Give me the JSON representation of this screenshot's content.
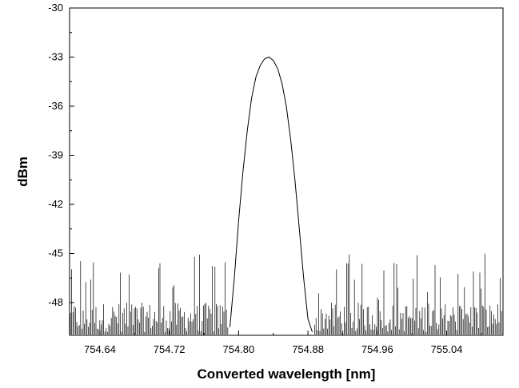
{
  "chart_data": {
    "type": "line",
    "title": "",
    "xlabel": "Converted wavelength [nm]",
    "ylabel": "dBm",
    "xlim": [
      754.605,
      755.105
    ],
    "ylim": [
      -50.0,
      -30
    ],
    "x_ticks": [
      754.64,
      754.72,
      754.8,
      754.88,
      754.96,
      755.04
    ],
    "x_tick_labels": [
      "754.64",
      "754.72",
      "754.80",
      "754.88",
      "754.96",
      "755.04"
    ],
    "y_ticks": [
      -30,
      -33,
      -36,
      -39,
      -42,
      -45,
      -48
    ],
    "y_tick_labels": [
      "-30",
      "-33",
      "-36",
      "-39",
      "-42",
      "-45",
      "-48"
    ],
    "grid": false,
    "line_color": "#000000",
    "series": [
      {
        "x": [
          754.79,
          754.795,
          754.8,
          754.805,
          754.81,
          754.815,
          754.82,
          754.825,
          754.83,
          754.835,
          754.84,
          754.845,
          754.85,
          754.855,
          754.86,
          754.865,
          754.87,
          754.875,
          754.88,
          754.885
        ],
        "values": [
          -49.5,
          -46.5,
          -43.0,
          -40.0,
          -37.5,
          -35.5,
          -34.2,
          -33.5,
          -33.1,
          -33.0,
          -33.2,
          -33.7,
          -34.6,
          -36.0,
          -38.0,
          -40.5,
          -43.5,
          -46.5,
          -49.0,
          -49.8
        ]
      }
    ],
    "noise_floor": {
      "base": -49.8,
      "peak_min": -48.0,
      "peak_max": -45.0
    }
  }
}
